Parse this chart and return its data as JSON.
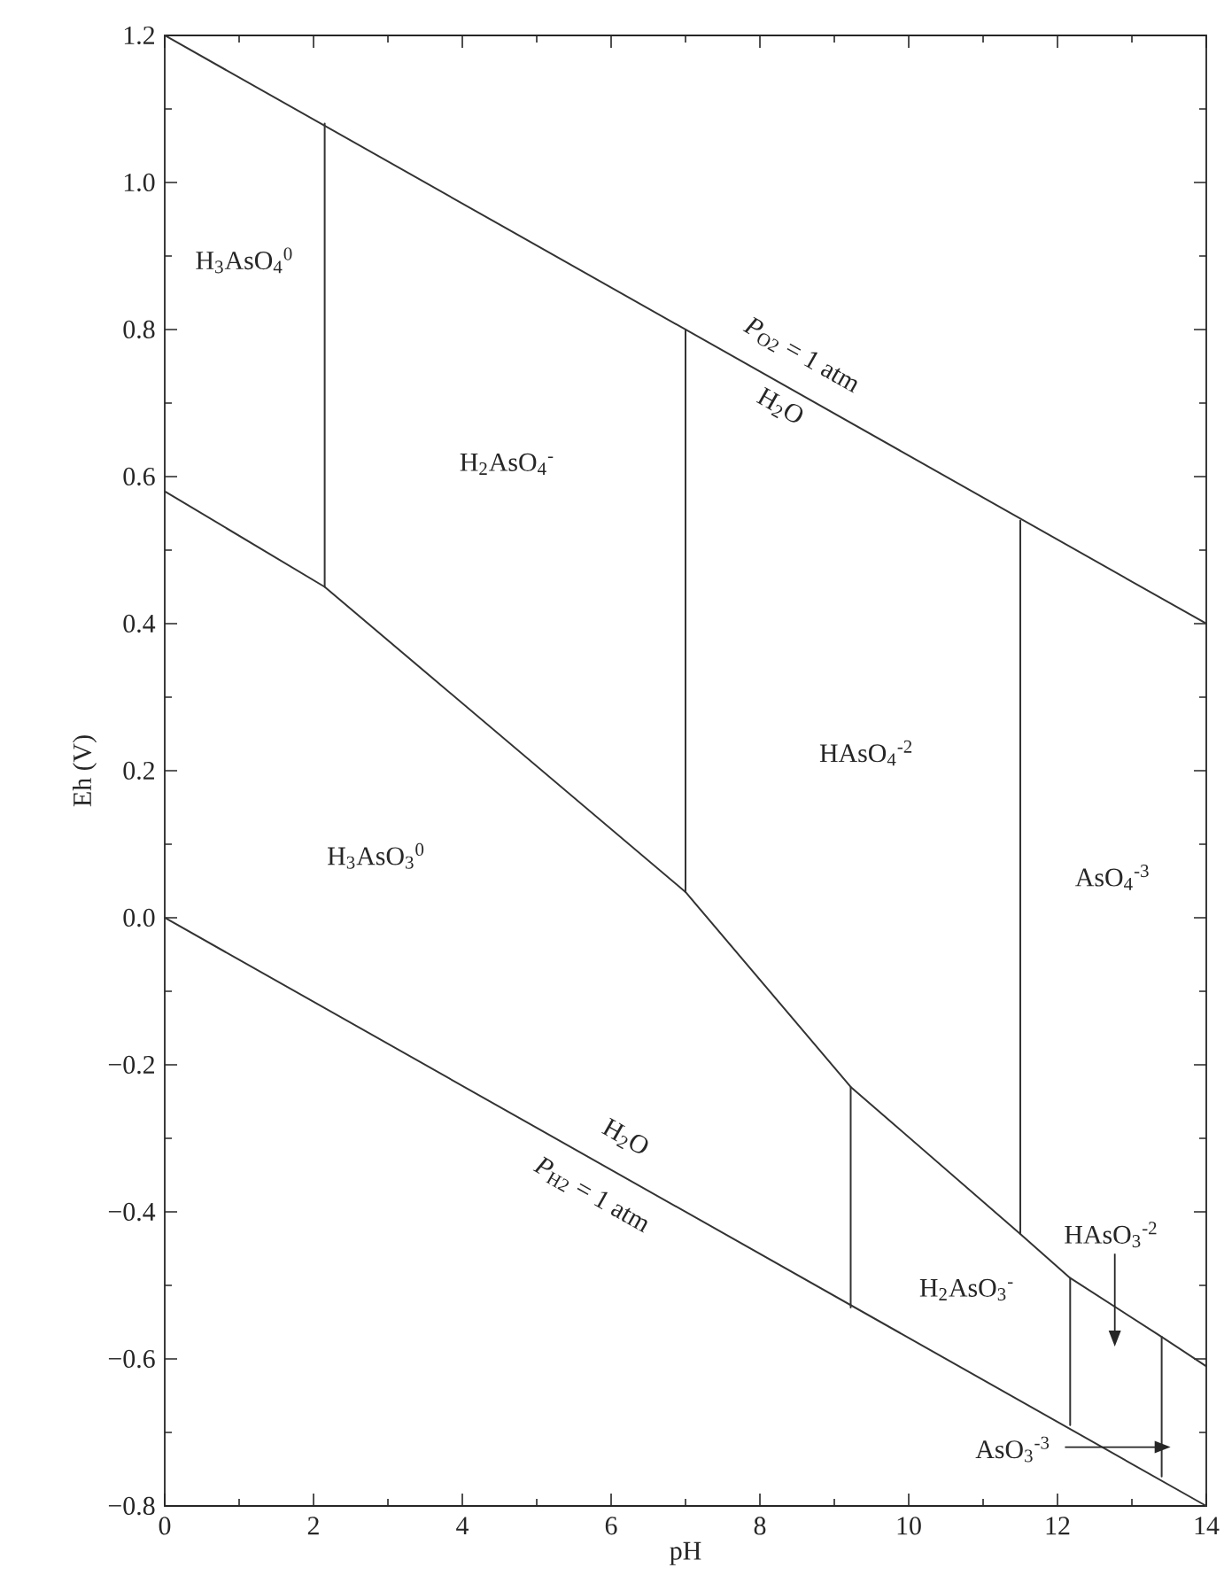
{
  "chart_data": {
    "type": "line",
    "xlabel": "pH",
    "ylabel": "Eh (V)",
    "xlim": [
      0,
      14
    ],
    "ylim": [
      -0.8,
      1.2
    ],
    "xticks": [
      0,
      2,
      4,
      6,
      8,
      10,
      12,
      14
    ],
    "yticks": [
      {
        "value": -0.8,
        "label": "−0.8"
      },
      {
        "value": -0.6,
        "label": "−0.6"
      },
      {
        "value": -0.4,
        "label": "−0.4"
      },
      {
        "value": -0.2,
        "label": "−0.2"
      },
      {
        "value": 0.0,
        "label": "0.0"
      },
      0.2,
      0.4,
      0.6,
      0.8,
      {
        "value": 1.0,
        "label": "1.0"
      },
      1.2
    ],
    "series": [
      {
        "color": "#333333",
        "x": [
          0,
          14
        ],
        "values": [
          1.2,
          0.4
        ]
      },
      {
        "color": "#333333",
        "x": [
          0,
          14
        ],
        "values": [
          0.0,
          -0.8
        ]
      },
      {
        "color": "#333333",
        "x": [
          0,
          2.15,
          7.0,
          9.22,
          11.5,
          12.17,
          13.4,
          14
        ],
        "values": [
          0.58,
          0.45,
          0.035,
          -0.23,
          -0.43,
          -0.49,
          -0.57,
          -0.61
        ]
      },
      {
        "color": "#333333",
        "x": [
          2.15,
          2.15
        ],
        "values": [
          0.45,
          1.08
        ]
      },
      {
        "color": "#333333",
        "x": [
          7.0,
          7.0
        ],
        "values": [
          0.035,
          0.8
        ]
      },
      {
        "color": "#333333",
        "x": [
          11.5,
          11.5
        ],
        "values": [
          -0.43,
          0.54
        ]
      },
      {
        "color": "#333333",
        "x": [
          9.22,
          9.22
        ],
        "values": [
          -0.23,
          -0.53
        ]
      },
      {
        "color": "#333333",
        "x": [
          12.17,
          12.17
        ],
        "values": [
          -0.49,
          -0.69
        ]
      },
      {
        "color": "#333333",
        "x": [
          13.4,
          13.4
        ],
        "values": [
          -0.57,
          -0.76
        ]
      }
    ],
    "annotations": [
      "H$_{3}$AsO$_{4}$$^{0}$",
      "H$_{2}$AsO$_{4}$$^{-}$",
      "*P*$_{O2}$ = 1 atm",
      "H$_{2}$O",
      "HAsO$_{4}$$^{-2}$",
      "AsO$_{4}$$^{-3}$",
      "H$_{3}$AsO$_{3}$$^{0}$",
      "H$_{2}$O",
      "*P*$_{H2}$ = 1 atm",
      "H$_{2}$AsO$_{3}$$^{-}$",
      "HAsO$_{3}$$^{-2}$",
      "AsO$_{3}$$^{-3}$"
    ]
  }
}
